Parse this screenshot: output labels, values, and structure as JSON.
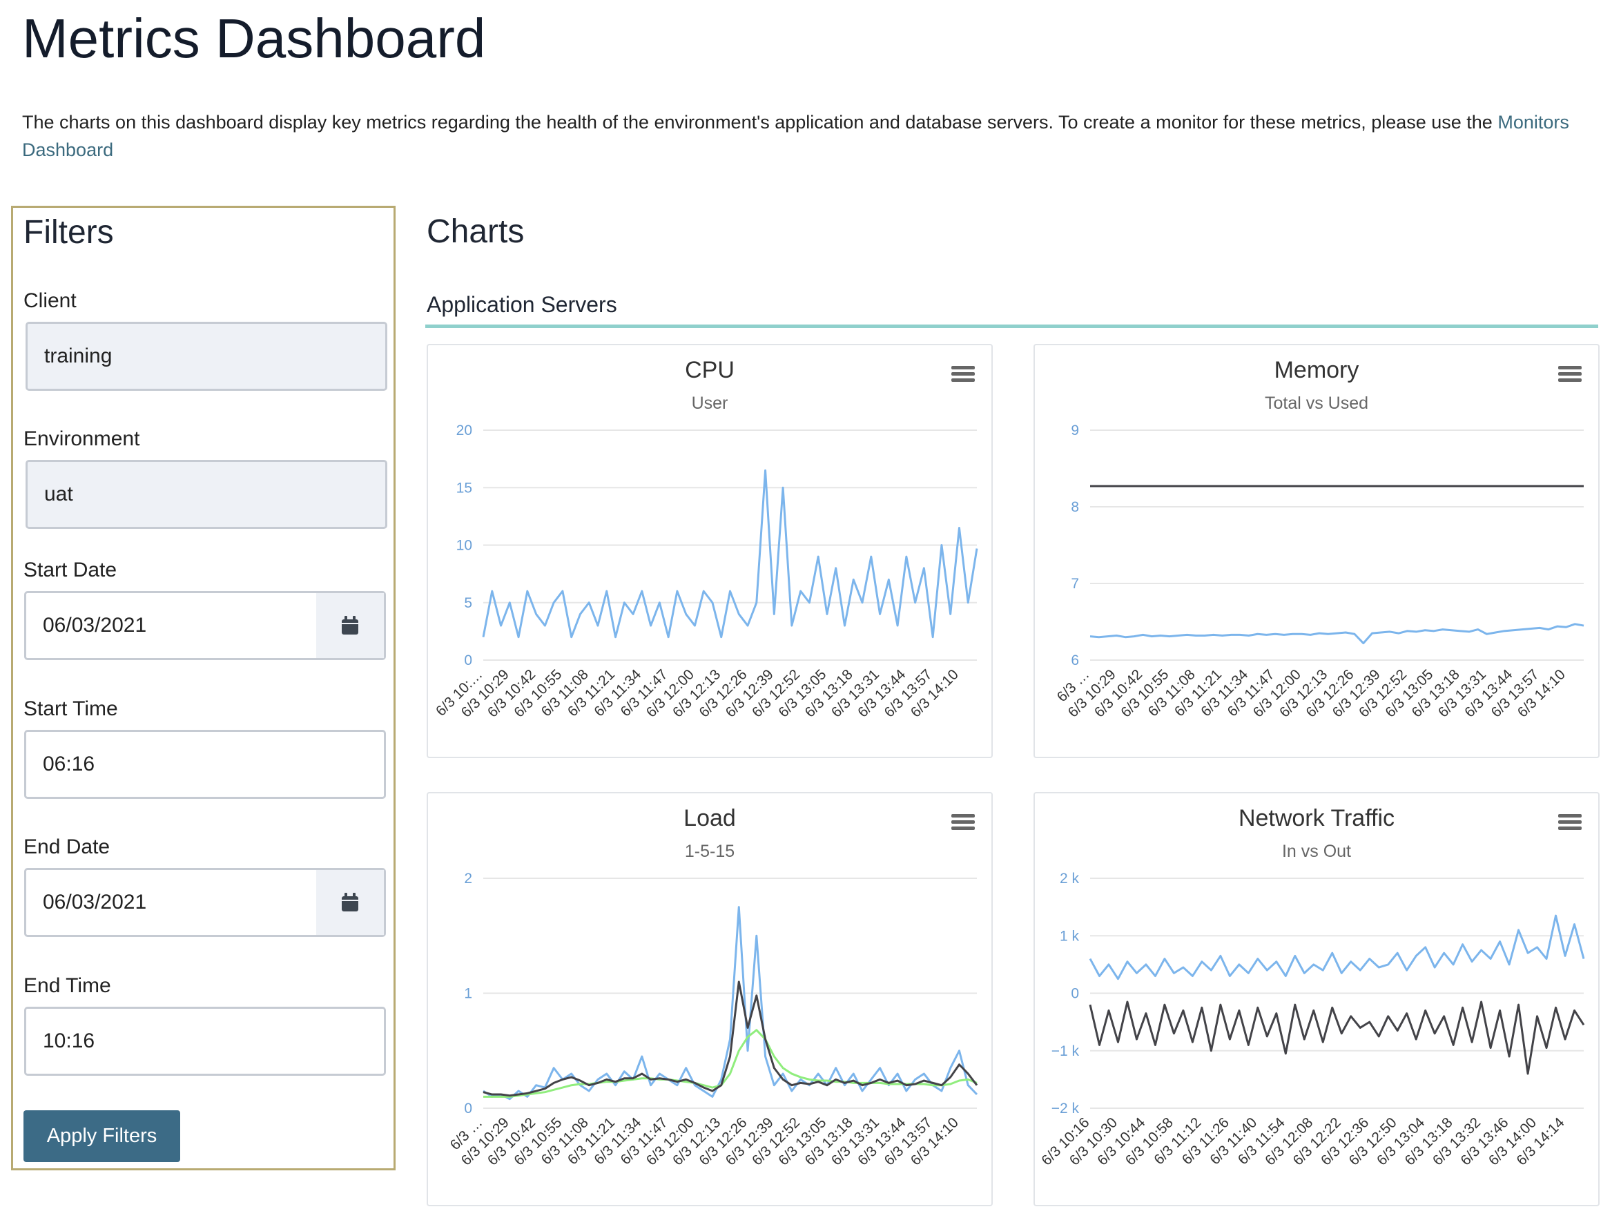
{
  "header": {
    "title": "Metrics Dashboard",
    "description": "The charts on this dashboard display key metrics regarding the health of the environment's application and database servers. To create a monitor for these metrics, please use the",
    "link": "Monitors Dashboard"
  },
  "filters": {
    "title": "Filters",
    "fields": [
      {
        "label": "Client",
        "value": "training"
      },
      {
        "label": "Environment",
        "value": "uat"
      },
      {
        "label": "Start Date",
        "value": "06/03/2021"
      },
      {
        "label": "Start Time",
        "value": "06:16"
      },
      {
        "label": "End Date",
        "value": "06/03/2021"
      },
      {
        "label": "End Time",
        "value": "10:16"
      }
    ],
    "button": "Apply Filters"
  },
  "charts_section": {
    "title": "Charts",
    "group": "Application Servers"
  },
  "chart_data": [
    {
      "type": "line",
      "title": "CPU",
      "subtitle": "User",
      "ylim": [
        0,
        20
      ],
      "yticks": [
        0,
        5,
        10,
        15,
        20
      ],
      "grid": true,
      "categories": [
        "6/3 10:…",
        null,
        null,
        "6/3 10:29",
        null,
        null,
        "6/3 10:42",
        null,
        null,
        "6/3 10:55",
        null,
        null,
        "6/3 11:08",
        null,
        null,
        "6/3 11:21",
        null,
        null,
        "6/3 11:34",
        null,
        null,
        "6/3 11:47",
        null,
        null,
        "6/3 12:00",
        null,
        null,
        "6/3 12:13",
        null,
        null,
        "6/3 12:26",
        null,
        null,
        "6/3 12:39",
        null,
        null,
        "6/3 12:52",
        null,
        null,
        "6/3 13:05",
        null,
        null,
        "6/3 13:18",
        null,
        null,
        "6/3 13:31",
        null,
        null,
        "6/3 13:44",
        null,
        null,
        "6/3 13:57",
        null,
        null,
        "6/3 14:10",
        null,
        null
      ],
      "series": [
        {
          "color": "#7cb5ec",
          "values": [
            2,
            6,
            3,
            5,
            2,
            6,
            4,
            3,
            5,
            6,
            2,
            4,
            5,
            3,
            6,
            2,
            5,
            4,
            6,
            3,
            5,
            2,
            6,
            4,
            3,
            6,
            5,
            2,
            6,
            4,
            3,
            5,
            16.5,
            4,
            15,
            3,
            6,
            5,
            9,
            4,
            8,
            3,
            7,
            5,
            9,
            4,
            7,
            3,
            9,
            5,
            8,
            2,
            10,
            4,
            11.5,
            5,
            9.7
          ]
        }
      ]
    },
    {
      "type": "line",
      "title": "Memory",
      "subtitle": "Total vs Used",
      "ylim": [
        6,
        9
      ],
      "yticks": [
        6,
        7,
        8,
        9
      ],
      "grid": true,
      "categories": [
        "6/3 …",
        null,
        null,
        "6/3 10:29",
        null,
        null,
        "6/3 10:42",
        null,
        null,
        "6/3 10:55",
        null,
        null,
        "6/3 11:08",
        null,
        null,
        "6/3 11:21",
        null,
        null,
        "6/3 11:34",
        null,
        null,
        "6/3 11:47",
        null,
        null,
        "6/3 12:00",
        null,
        null,
        "6/3 12:13",
        null,
        null,
        "6/3 12:26",
        null,
        null,
        "6/3 12:39",
        null,
        null,
        "6/3 12:52",
        null,
        null,
        "6/3 13:05",
        null,
        null,
        "6/3 13:18",
        null,
        null,
        "6/3 13:31",
        null,
        null,
        "6/3 13:44",
        null,
        null,
        "6/3 13:57",
        null,
        null,
        "6/3 14:10",
        null,
        null
      ],
      "series": [
        {
          "color": "#434348",
          "values": [
            8.27,
            8.27,
            8.27,
            8.27,
            8.27,
            8.27,
            8.27,
            8.27,
            8.27,
            8.27,
            8.27,
            8.27,
            8.27,
            8.27,
            8.27,
            8.27,
            8.27,
            8.27,
            8.27,
            8.27,
            8.27,
            8.27,
            8.27,
            8.27,
            8.27,
            8.27,
            8.27,
            8.27,
            8.27,
            8.27,
            8.27,
            8.27,
            8.27,
            8.27,
            8.27,
            8.27,
            8.27,
            8.27,
            8.27,
            8.27,
            8.27,
            8.27,
            8.27,
            8.27,
            8.27,
            8.27,
            8.27,
            8.27,
            8.27,
            8.27,
            8.27,
            8.27,
            8.27,
            8.27,
            8.27,
            8.27,
            8.27
          ]
        },
        {
          "color": "#7cb5ec",
          "values": [
            6.31,
            6.3,
            6.31,
            6.32,
            6.3,
            6.31,
            6.33,
            6.31,
            6.32,
            6.31,
            6.32,
            6.33,
            6.32,
            6.32,
            6.33,
            6.32,
            6.33,
            6.33,
            6.32,
            6.34,
            6.33,
            6.34,
            6.33,
            6.34,
            6.34,
            6.33,
            6.35,
            6.34,
            6.35,
            6.36,
            6.34,
            6.22,
            6.35,
            6.36,
            6.37,
            6.35,
            6.38,
            6.37,
            6.39,
            6.38,
            6.4,
            6.39,
            6.38,
            6.37,
            6.4,
            6.34,
            6.36,
            6.38,
            6.39,
            6.4,
            6.41,
            6.42,
            6.4,
            6.44,
            6.43,
            6.47,
            6.45
          ]
        }
      ]
    },
    {
      "type": "line",
      "title": "Load",
      "subtitle": "1-5-15",
      "ylim": [
        0,
        2
      ],
      "yticks": [
        0,
        1,
        2
      ],
      "grid": true,
      "categories": [
        "6/3 …",
        null,
        null,
        "6/3 10:29",
        null,
        null,
        "6/3 10:42",
        null,
        null,
        "6/3 10:55",
        null,
        null,
        "6/3 11:08",
        null,
        null,
        "6/3 11:21",
        null,
        null,
        "6/3 11:34",
        null,
        null,
        "6/3 11:47",
        null,
        null,
        "6/3 12:00",
        null,
        null,
        "6/3 12:13",
        null,
        null,
        "6/3 12:26",
        null,
        null,
        "6/3 12:39",
        null,
        null,
        "6/3 12:52",
        null,
        null,
        "6/3 13:05",
        null,
        null,
        "6/3 13:18",
        null,
        null,
        "6/3 13:31",
        null,
        null,
        "6/3 13:44",
        null,
        null,
        "6/3 13:57",
        null,
        null,
        "6/3 14:10",
        null,
        null
      ],
      "series": [
        {
          "color": "#7cb5ec",
          "values": [
            0.15,
            0.1,
            0.12,
            0.08,
            0.15,
            0.1,
            0.2,
            0.18,
            0.35,
            0.25,
            0.3,
            0.2,
            0.15,
            0.25,
            0.3,
            0.2,
            0.32,
            0.25,
            0.45,
            0.2,
            0.3,
            0.25,
            0.2,
            0.35,
            0.2,
            0.15,
            0.1,
            0.25,
            0.6,
            1.75,
            0.5,
            1.5,
            0.45,
            0.2,
            0.3,
            0.15,
            0.25,
            0.2,
            0.3,
            0.2,
            0.35,
            0.2,
            0.3,
            0.15,
            0.25,
            0.35,
            0.2,
            0.3,
            0.15,
            0.25,
            0.3,
            0.2,
            0.15,
            0.35,
            0.5,
            0.2,
            0.12
          ]
        },
        {
          "color": "#90ed7d",
          "values": [
            0.1,
            0.1,
            0.1,
            0.1,
            0.11,
            0.12,
            0.13,
            0.14,
            0.16,
            0.18,
            0.2,
            0.21,
            0.21,
            0.22,
            0.23,
            0.23,
            0.24,
            0.25,
            0.26,
            0.26,
            0.25,
            0.25,
            0.24,
            0.23,
            0.22,
            0.2,
            0.18,
            0.2,
            0.3,
            0.5,
            0.62,
            0.68,
            0.6,
            0.45,
            0.35,
            0.3,
            0.27,
            0.25,
            0.24,
            0.24,
            0.23,
            0.23,
            0.22,
            0.22,
            0.22,
            0.22,
            0.21,
            0.21,
            0.21,
            0.21,
            0.21,
            0.2,
            0.2,
            0.21,
            0.24,
            0.25,
            0.22
          ]
        },
        {
          "color": "#434348",
          "values": [
            0.14,
            0.12,
            0.12,
            0.11,
            0.12,
            0.13,
            0.15,
            0.17,
            0.22,
            0.25,
            0.27,
            0.24,
            0.2,
            0.22,
            0.25,
            0.23,
            0.26,
            0.26,
            0.3,
            0.25,
            0.26,
            0.25,
            0.23,
            0.25,
            0.22,
            0.18,
            0.15,
            0.2,
            0.45,
            1.1,
            0.7,
            0.98,
            0.6,
            0.35,
            0.25,
            0.2,
            0.22,
            0.21,
            0.23,
            0.2,
            0.25,
            0.22,
            0.24,
            0.2,
            0.22,
            0.25,
            0.22,
            0.24,
            0.2,
            0.21,
            0.24,
            0.22,
            0.2,
            0.27,
            0.38,
            0.3,
            0.2
          ]
        }
      ]
    },
    {
      "type": "line",
      "title": "Network Traffic",
      "subtitle": "In vs Out",
      "ylim": [
        -2000,
        2000
      ],
      "yticks": [
        {
          "value": -2000,
          "label": "−2 k"
        },
        {
          "value": -1000,
          "label": "−1 k"
        },
        0,
        {
          "value": 1000,
          "label": "1 k"
        },
        {
          "value": 2000,
          "label": "2 k"
        }
      ],
      "grid": true,
      "categories": [
        "6/3 10:16",
        null,
        null,
        "6/3 10:30",
        null,
        null,
        "6/3 10:44",
        null,
        null,
        "6/3 10:58",
        null,
        null,
        "6/3 11:12",
        null,
        null,
        "6/3 11:26",
        null,
        null,
        "6/3 11:40",
        null,
        null,
        "6/3 11:54",
        null,
        null,
        "6/3 12:08",
        null,
        null,
        "6/3 12:22",
        null,
        null,
        "6/3 12:36",
        null,
        null,
        "6/3 12:50",
        null,
        null,
        "6/3 13:04",
        null,
        null,
        "6/3 13:18",
        null,
        null,
        "6/3 13:32",
        null,
        null,
        "6/3 13:46",
        null,
        null,
        "6/3 14:00",
        null,
        null,
        "6/3 14:14",
        null,
        null
      ],
      "series": [
        {
          "color": "#7cb5ec",
          "values": [
            600,
            300,
            500,
            250,
            550,
            350,
            500,
            300,
            600,
            350,
            450,
            300,
            550,
            400,
            650,
            300,
            500,
            350,
            600,
            400,
            550,
            300,
            650,
            350,
            500,
            400,
            700,
            350,
            550,
            400,
            600,
            450,
            500,
            700,
            400,
            650,
            800,
            450,
            700,
            500,
            850,
            550,
            750,
            600,
            900,
            500,
            1100,
            700,
            800,
            600,
            1350,
            650,
            1200,
            600
          ]
        },
        {
          "color": "#434348",
          "values": [
            -200,
            -900,
            -300,
            -850,
            -150,
            -800,
            -350,
            -900,
            -200,
            -700,
            -300,
            -850,
            -250,
            -1000,
            -200,
            -800,
            -300,
            -900,
            -250,
            -750,
            -350,
            -1050,
            -200,
            -800,
            -300,
            -850,
            -250,
            -700,
            -400,
            -600,
            -500,
            -750,
            -400,
            -650,
            -350,
            -800,
            -300,
            -700,
            -400,
            -900,
            -250,
            -850,
            -150,
            -950,
            -300,
            -1100,
            -200,
            -1400,
            -400,
            -950,
            -250,
            -800,
            -300,
            -550
          ]
        }
      ]
    }
  ]
}
